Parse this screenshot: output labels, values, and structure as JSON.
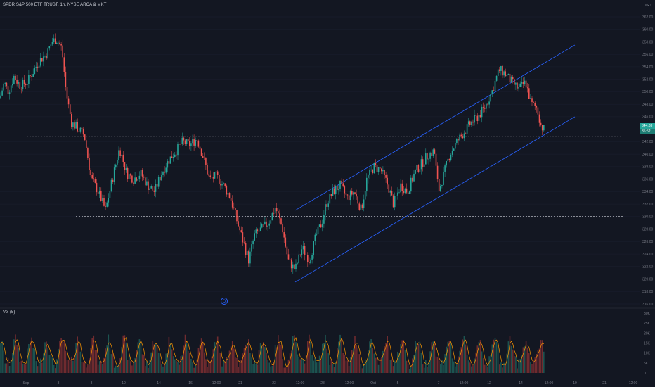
{
  "header": {
    "title": "SPDR S&P 500 ETF TRUST, 1h, NYSE ARCA & MKT"
  },
  "price_axis": {
    "currency": "USD"
  },
  "volume_pane": {
    "label": "Vol (5)"
  },
  "badges": {
    "last_price": "344.03",
    "countdown": "35:52"
  },
  "event_marker": {
    "symbol": "D"
  },
  "colors": {
    "background": "#131722",
    "up": "#26a69a",
    "down": "#ef5350",
    "channel": "#2962ff",
    "levels": "#d1d4dc",
    "vol_ma": "#ff9800"
  },
  "chart_data": {
    "type": "candlestick",
    "title": "SPDR S&P 500 ETF TRUST, 1h, NYSE ARCA & MKT",
    "ylim": [
      316,
      362
    ],
    "y_ticks": [
      362,
      360,
      358,
      356,
      354,
      352,
      350,
      348,
      346,
      342,
      340,
      338,
      336,
      334,
      332,
      330,
      328,
      326,
      324,
      322,
      320,
      318,
      316
    ],
    "x_ticks": [
      "Sep",
      "3",
      "8",
      "10",
      "14",
      "16",
      "12:00",
      "21",
      "23",
      "12:00",
      "28",
      "12:00",
      "Oct",
      "5",
      "7",
      "12:00",
      "12",
      "14",
      "12:00",
      "19",
      "21",
      "12:00"
    ],
    "price_path": [
      {
        "t": 0,
        "p": 349
      },
      {
        "t": 6,
        "p": 351.5
      },
      {
        "t": 12,
        "p": 350
      },
      {
        "t": 20,
        "p": 352.5
      },
      {
        "t": 28,
        "p": 351
      },
      {
        "t": 38,
        "p": 351.5
      },
      {
        "t": 46,
        "p": 353
      },
      {
        "t": 56,
        "p": 355
      },
      {
        "t": 66,
        "p": 356
      },
      {
        "t": 74,
        "p": 358
      },
      {
        "t": 80,
        "p": 358.5
      },
      {
        "t": 88,
        "p": 357
      },
      {
        "t": 94,
        "p": 350
      },
      {
        "t": 102,
        "p": 345
      },
      {
        "t": 112,
        "p": 344
      },
      {
        "t": 120,
        "p": 343
      },
      {
        "t": 130,
        "p": 336
      },
      {
        "t": 140,
        "p": 334
      },
      {
        "t": 150,
        "p": 331
      },
      {
        "t": 160,
        "p": 336
      },
      {
        "t": 170,
        "p": 341
      },
      {
        "t": 180,
        "p": 337
      },
      {
        "t": 190,
        "p": 336
      },
      {
        "t": 200,
        "p": 337
      },
      {
        "t": 210,
        "p": 335
      },
      {
        "t": 220,
        "p": 334
      },
      {
        "t": 230,
        "p": 337
      },
      {
        "t": 240,
        "p": 339
      },
      {
        "t": 250,
        "p": 340.5
      },
      {
        "t": 260,
        "p": 342
      },
      {
        "t": 270,
        "p": 341.5
      },
      {
        "t": 280,
        "p": 342.5
      },
      {
        "t": 288,
        "p": 340
      },
      {
        "t": 298,
        "p": 336
      },
      {
        "t": 308,
        "p": 336.5
      },
      {
        "t": 318,
        "p": 335
      },
      {
        "t": 328,
        "p": 333
      },
      {
        "t": 338,
        "p": 329
      },
      {
        "t": 346,
        "p": 326
      },
      {
        "t": 354,
        "p": 323
      },
      {
        "t": 362,
        "p": 327
      },
      {
        "t": 372,
        "p": 328
      },
      {
        "t": 382,
        "p": 329
      },
      {
        "t": 392,
        "p": 331.5
      },
      {
        "t": 402,
        "p": 328
      },
      {
        "t": 410,
        "p": 323
      },
      {
        "t": 420,
        "p": 321.5
      },
      {
        "t": 430,
        "p": 325
      },
      {
        "t": 440,
        "p": 323
      },
      {
        "t": 450,
        "p": 327
      },
      {
        "t": 458,
        "p": 329
      },
      {
        "t": 464,
        "p": 332
      },
      {
        "t": 474,
        "p": 334
      },
      {
        "t": 484,
        "p": 335
      },
      {
        "t": 494,
        "p": 333
      },
      {
        "t": 504,
        "p": 334
      },
      {
        "t": 514,
        "p": 331
      },
      {
        "t": 522,
        "p": 336
      },
      {
        "t": 532,
        "p": 338
      },
      {
        "t": 542,
        "p": 337.5
      },
      {
        "t": 552,
        "p": 335
      },
      {
        "t": 560,
        "p": 332
      },
      {
        "t": 570,
        "p": 335
      },
      {
        "t": 580,
        "p": 334
      },
      {
        "t": 590,
        "p": 337
      },
      {
        "t": 600,
        "p": 338.5
      },
      {
        "t": 610,
        "p": 340
      },
      {
        "t": 618,
        "p": 340.5
      },
      {
        "t": 624,
        "p": 334
      },
      {
        "t": 632,
        "p": 337
      },
      {
        "t": 640,
        "p": 340
      },
      {
        "t": 650,
        "p": 342
      },
      {
        "t": 660,
        "p": 343.5
      },
      {
        "t": 670,
        "p": 345
      },
      {
        "t": 680,
        "p": 346
      },
      {
        "t": 690,
        "p": 347.5
      },
      {
        "t": 700,
        "p": 350
      },
      {
        "t": 710,
        "p": 353.5
      },
      {
        "t": 718,
        "p": 353
      },
      {
        "t": 728,
        "p": 351.5
      },
      {
        "t": 738,
        "p": 350.5
      },
      {
        "t": 748,
        "p": 351.5
      },
      {
        "t": 756,
        "p": 348
      },
      {
        "t": 764,
        "p": 347.5
      },
      {
        "t": 770,
        "p": 344.5
      },
      {
        "t": 774,
        "p": 344
      }
    ],
    "channel": {
      "upper": [
        {
          "t": 420,
          "p": 331
        },
        {
          "t": 818,
          "p": 357.5
        }
      ],
      "lower": [
        {
          "t": 420,
          "p": 319.5
        },
        {
          "t": 818,
          "p": 346
        }
      ]
    },
    "horizontal_levels": [
      342.8,
      330
    ],
    "volume_axis": {
      "ylim": [
        0,
        32
      ],
      "ticks": [
        "30K",
        "25K",
        "20K",
        "15K",
        "10K",
        "5K",
        "0"
      ]
    }
  }
}
